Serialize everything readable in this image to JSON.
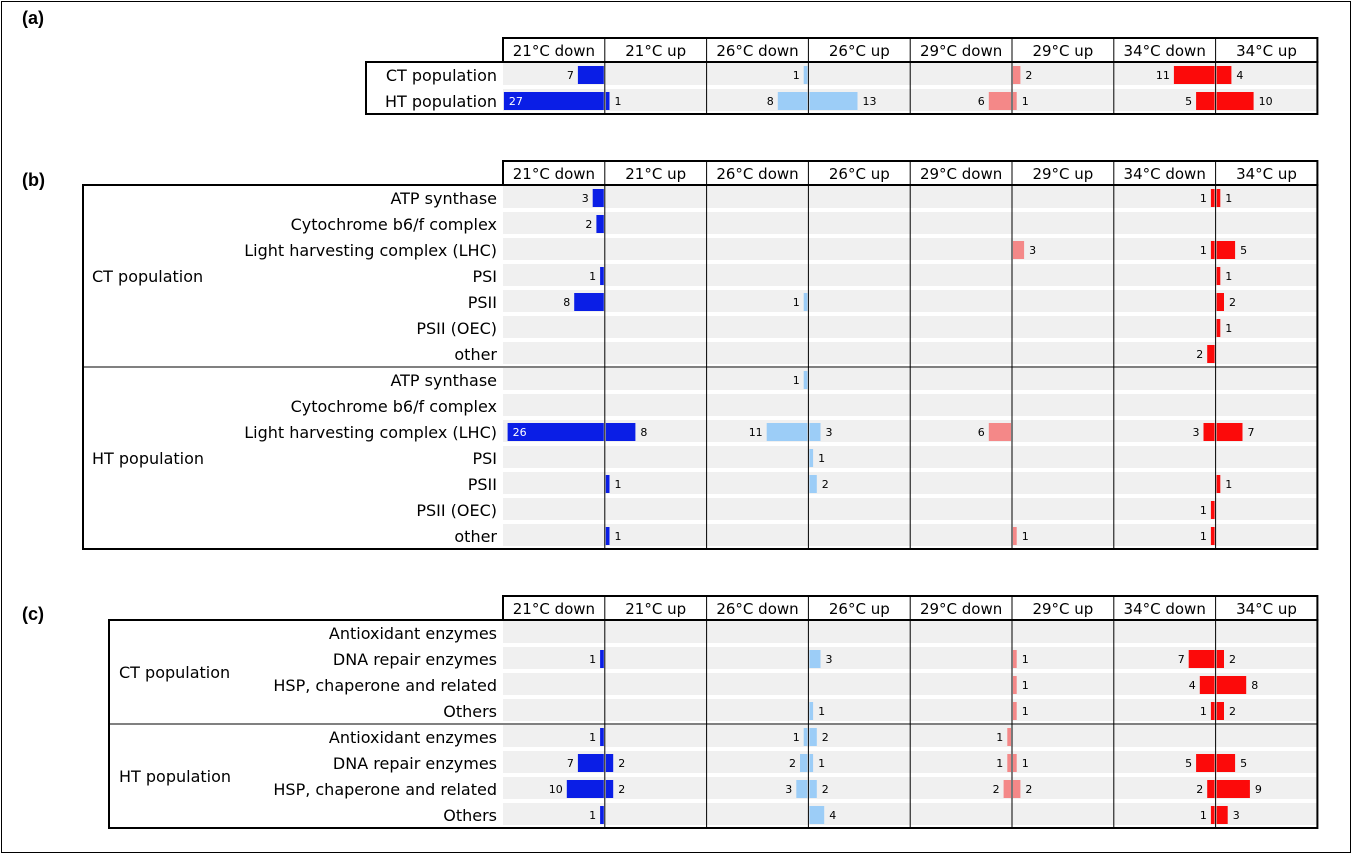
{
  "panels": [
    {
      "label": "(a)"
    },
    {
      "label": "(b)"
    },
    {
      "label": "(c)"
    }
  ],
  "colors": {
    "21": "#0a1ee6",
    "26": "#9ccdf7",
    "29": "#f48888",
    "34": "#fc0a0a",
    "row_shade": "#f0f0f0"
  },
  "chart_data": [
    {
      "type": "bar",
      "panel": "(a)",
      "columns": [
        "21°C down",
        "21°C up",
        "26°C down",
        "26°C up",
        "29°C down",
        "29°C up",
        "34°C down",
        "34°C up"
      ],
      "groups": [
        {
          "name": "",
          "rows": [
            {
              "label": "CT population",
              "values": [
                7,
                0,
                1,
                0,
                0,
                2,
                11,
                4
              ]
            },
            {
              "label": "HT population",
              "values": [
                27,
                1,
                8,
                13,
                6,
                1,
                5,
                10
              ]
            }
          ]
        }
      ]
    },
    {
      "type": "bar",
      "panel": "(b)",
      "columns": [
        "21°C down",
        "21°C up",
        "26°C down",
        "26°C up",
        "29°C down",
        "29°C up",
        "34°C down",
        "34°C up"
      ],
      "groups": [
        {
          "name": "CT population",
          "rows": [
            {
              "label": "ATP synthase",
              "values": [
                3,
                0,
                0,
                0,
                0,
                0,
                1,
                1
              ]
            },
            {
              "label": "Cytochrome b6/f complex",
              "values": [
                2,
                0,
                0,
                0,
                0,
                0,
                0,
                0
              ]
            },
            {
              "label": "Light harvesting complex (LHC)",
              "values": [
                0,
                0,
                0,
                0,
                0,
                3,
                1,
                5
              ]
            },
            {
              "label": "PSI",
              "values": [
                1,
                0,
                0,
                0,
                0,
                0,
                0,
                1
              ]
            },
            {
              "label": "PSII",
              "values": [
                8,
                0,
                1,
                0,
                0,
                0,
                0,
                2
              ]
            },
            {
              "label": "PSII (OEC)",
              "values": [
                0,
                0,
                0,
                0,
                0,
                0,
                0,
                1
              ]
            },
            {
              "label": "other",
              "values": [
                0,
                0,
                0,
                0,
                0,
                0,
                2,
                0
              ]
            }
          ]
        },
        {
          "name": "HT population",
          "rows": [
            {
              "label": "ATP synthase",
              "values": [
                0,
                0,
                1,
                0,
                0,
                0,
                0,
                0
              ]
            },
            {
              "label": "Cytochrome b6/f complex",
              "values": [
                0,
                0,
                0,
                0,
                0,
                0,
                0,
                0
              ]
            },
            {
              "label": "Light harvesting complex (LHC)",
              "values": [
                26,
                8,
                11,
                3,
                6,
                0,
                3,
                7
              ]
            },
            {
              "label": "PSI",
              "values": [
                0,
                0,
                0,
                1,
                0,
                0,
                0,
                0
              ]
            },
            {
              "label": "PSII",
              "values": [
                0,
                1,
                0,
                2,
                0,
                0,
                0,
                1
              ]
            },
            {
              "label": "PSII (OEC)",
              "values": [
                0,
                0,
                0,
                0,
                0,
                0,
                1,
                0
              ]
            },
            {
              "label": "other",
              "values": [
                0,
                1,
                0,
                0,
                0,
                1,
                1,
                0
              ]
            }
          ]
        }
      ]
    },
    {
      "type": "bar",
      "panel": "(c)",
      "columns": [
        "21°C down",
        "21°C up",
        "26°C down",
        "26°C up",
        "29°C down",
        "29°C up",
        "34°C down",
        "34°C up"
      ],
      "groups": [
        {
          "name": "CT population",
          "rows": [
            {
              "label": "Antioxidant enzymes",
              "values": [
                0,
                0,
                0,
                0,
                0,
                0,
                0,
                0
              ]
            },
            {
              "label": "DNA repair enzymes",
              "values": [
                1,
                0,
                0,
                3,
                0,
                1,
                7,
                2
              ]
            },
            {
              "label": "HSP, chaperone and related",
              "values": [
                0,
                0,
                0,
                0,
                0,
                1,
                4,
                8
              ]
            },
            {
              "label": "Others",
              "values": [
                0,
                0,
                0,
                1,
                0,
                1,
                1,
                2
              ]
            }
          ]
        },
        {
          "name": "HT population",
          "rows": [
            {
              "label": "Antioxidant enzymes",
              "values": [
                1,
                0,
                1,
                2,
                1,
                0,
                0,
                0
              ]
            },
            {
              "label": "DNA repair enzymes",
              "values": [
                7,
                2,
                2,
                1,
                1,
                1,
                5,
                5
              ]
            },
            {
              "label": "HSP, chaperone and related",
              "values": [
                10,
                2,
                3,
                2,
                2,
                2,
                2,
                9
              ]
            },
            {
              "label": "Others",
              "values": [
                1,
                0,
                0,
                4,
                0,
                0,
                1,
                3
              ]
            }
          ]
        }
      ]
    }
  ]
}
